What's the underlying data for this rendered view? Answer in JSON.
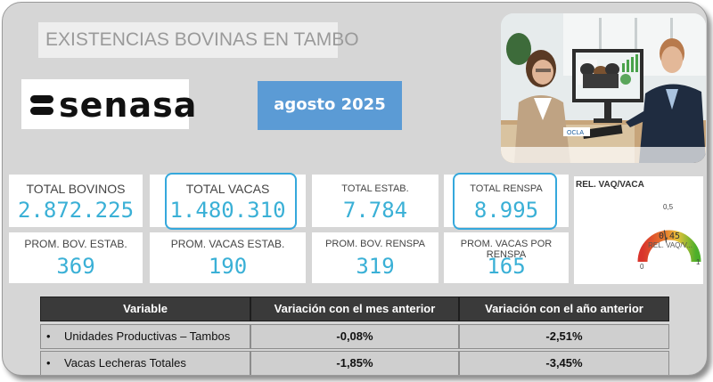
{
  "title": "EXISTENCIAS BOVINAS EN TAMBO",
  "brand": "senasa",
  "period": "agosto 2025",
  "photo": {
    "screen_label": "OCLA"
  },
  "kpis": {
    "total_bovinos": {
      "label": "TOTAL BOVINOS",
      "value": "2.872.225"
    },
    "total_vacas": {
      "label": "TOTAL VACAS",
      "value": "1.480.310"
    },
    "total_estab": {
      "label": "TOTAL ESTAB.",
      "value": "7.784"
    },
    "total_renspa": {
      "label": "TOTAL RENSPA",
      "value": "8.995"
    },
    "prom_bov_estab": {
      "label": "PROM. BOV. ESTAB.",
      "value": "369"
    },
    "prom_vacas_estab": {
      "label": "PROM. VACAS ESTAB.",
      "value": "190"
    },
    "prom_bov_renspa": {
      "label": "PROM. BOV. RENSPA",
      "value": "319"
    },
    "prom_vacas_renspa": {
      "label": "PROM. VACAS POR RENSPA",
      "value": "165"
    }
  },
  "gauge": {
    "title": "REL. VAQ/VACA",
    "value": "0,45",
    "value_num": 0.45,
    "sub_label": "REL. VAQ/V...",
    "min": "0",
    "max": "1",
    "mid": "0,5"
  },
  "table": {
    "headers": [
      "Variable",
      "Variación con el mes anterior",
      "Variación con el año anterior"
    ],
    "rows": [
      {
        "bullet": "•",
        "variable": "Unidades Productivas – Tambos",
        "mes": "-0,08%",
        "anio": "-2,51%"
      },
      {
        "bullet": "•",
        "variable": "Vacas Lecheras Totales",
        "mes": "-1,85%",
        "anio": "-3,45%"
      }
    ]
  },
  "colors": {
    "accent": "#3ab0d6",
    "date_bg": "#5b9bd5",
    "gauge_red": "#d9342b",
    "gauge_green": "#4caf2a"
  }
}
